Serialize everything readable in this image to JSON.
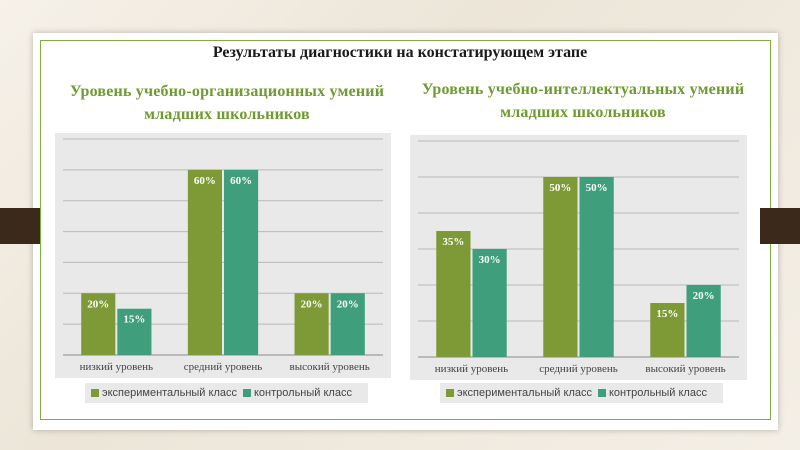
{
  "slide": {
    "title": "Результаты диагностики на констатирующем этапе"
  },
  "colors": {
    "accent": "#6f9a2f",
    "series_experimental": "#7e9a36",
    "series_control": "#3f9e7c"
  },
  "chart_data": [
    {
      "type": "bar",
      "title": "Уровень учебно-организационных умений младших школьников",
      "categories": [
        "низкий уровень",
        "средний уровень",
        "высокий уровень"
      ],
      "series": [
        {
          "name": "экспериментальный класс",
          "values": [
            20,
            60,
            20
          ]
        },
        {
          "name": "контрольный класс",
          "values": [
            15,
            60,
            20
          ]
        }
      ],
      "data_labels": [
        [
          "20%",
          "60%",
          "20%"
        ],
        [
          "15%",
          "60%",
          "20%"
        ]
      ],
      "ylim": [
        0,
        70
      ],
      "grid": true,
      "legend": "bottom"
    },
    {
      "type": "bar",
      "title": "Уровень учебно-интеллектуальных умений младших школьников",
      "categories": [
        "низкий уровень",
        "средний уровень",
        "высокий уровень"
      ],
      "series": [
        {
          "name": "экспериментальный класс",
          "values": [
            35,
            50,
            15
          ]
        },
        {
          "name": "контрольный класс",
          "values": [
            30,
            50,
            20
          ]
        }
      ],
      "data_labels": [
        [
          "35%",
          "50%",
          "15%"
        ],
        [
          "30%",
          "50%",
          "20%"
        ]
      ],
      "ylim": [
        0,
        60
      ],
      "grid": true,
      "legend": "bottom"
    }
  ]
}
